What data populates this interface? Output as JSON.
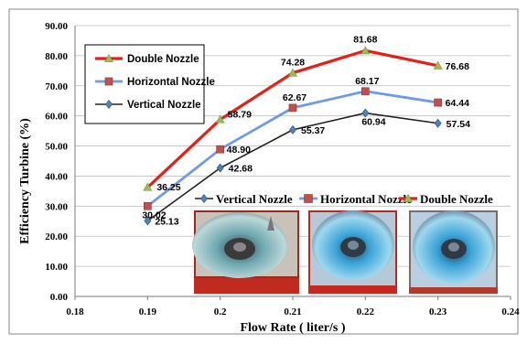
{
  "chart_data": {
    "type": "line",
    "xlabel": "Flow Rate ( liter/s )",
    "ylabel": "Efficiency  Turbine   (%)",
    "xlim": [
      0.18,
      0.24
    ],
    "ylim": [
      0,
      90
    ],
    "x_ticks": [
      "0.18",
      "0.19",
      "0.2",
      "0.21",
      "0.22",
      "0.23",
      "0.24"
    ],
    "y_ticks": [
      "0.00",
      "10.00",
      "20.00",
      "30.00",
      "40.00",
      "50.00",
      "60.00",
      "70.00",
      "80.00",
      "90.00"
    ],
    "grid": "horizontal",
    "x": [
      0.19,
      0.2,
      0.21,
      0.22,
      0.23
    ],
    "series": [
      {
        "name": "Double Nozzle",
        "color": "#e32119",
        "marker": "triangle",
        "values": [
          36.25,
          58.79,
          74.28,
          81.68,
          76.68
        ],
        "labels": [
          "36.25",
          "58.79",
          "74.28",
          "81.68",
          "76.68"
        ]
      },
      {
        "name": "Horizontal Nozzle",
        "color": "#5b8ee6",
        "marker": "square",
        "values": [
          30.02,
          48.9,
          62.67,
          68.17,
          64.44
        ],
        "labels": [
          "30.02",
          "48.90",
          "62.67",
          "68.17",
          "64.44"
        ]
      },
      {
        "name": "Vertical Nozzle",
        "color": "#1a1a1a",
        "marker": "diamond",
        "values": [
          25.13,
          42.68,
          55.37,
          60.94,
          57.54
        ],
        "labels": [
          "25.13",
          "42.68",
          "55.37",
          "60.94",
          "57.54"
        ]
      }
    ],
    "legend_top_left": [
      "Double Nozzle",
      "Horizontal Nozzle",
      "Vertical Nozzle"
    ],
    "legend_bottom": [
      "Vertical Nozzle",
      "Horizontal Nozzle",
      "Double  Nozzle"
    ],
    "photo_insets": [
      "vertical-nozzle-photo",
      "horizontal-nozzle-photo",
      "double-nozzle-photo"
    ]
  }
}
